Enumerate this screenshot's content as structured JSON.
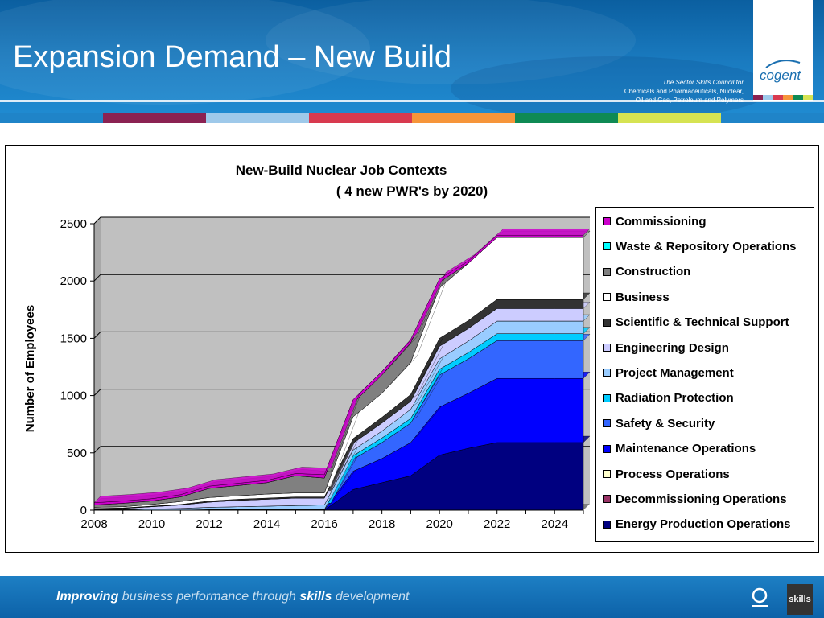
{
  "slide": {
    "title": "Expansion Demand – New Build",
    "tagline": [
      "The Sector Skills Council for",
      "Chemicals and Pharmaceuticals, Nuclear,",
      "Oil and Gas, Petroleum and Polymers"
    ],
    "logo_text": "cogent",
    "footer": {
      "w1": "Improving",
      "w2": " business performance through ",
      "w3": "skills",
      "w4": " development"
    },
    "skills_logo_text": "skills",
    "band_colors": [
      "#1f84c8",
      "#8b2252",
      "#9ec9ea",
      "#d83a4f",
      "#f6953a",
      "#0f8a54",
      "#d6e352",
      "#1f84c8"
    ],
    "logo_stripe_colors": [
      "#8b2252",
      "#9ec9ea",
      "#d83a4f",
      "#f6953a",
      "#0f8a54",
      "#d6e352"
    ]
  },
  "chart_data": {
    "type": "area",
    "stacked": true,
    "title": "New-Build Nuclear Job Contexts",
    "subtitle": "( 4 new PWR's by 2020)",
    "ylabel": "Number of Employees",
    "xlabel": "",
    "ylim": [
      0,
      2500
    ],
    "yticks": [
      0,
      500,
      1000,
      1500,
      2000,
      2500
    ],
    "xlim": [
      2008,
      2025
    ],
    "xticks": [
      2008,
      2010,
      2012,
      2014,
      2016,
      2018,
      2020,
      2022,
      2024
    ],
    "x": [
      2008,
      2009,
      2010,
      2011,
      2012,
      2013,
      2014,
      2015,
      2016,
      2017,
      2018,
      2019,
      2020,
      2021,
      2022,
      2023,
      2024,
      2025
    ],
    "grid": true,
    "legend_position": "right",
    "plot_background": "#c0c0c0",
    "series": [
      {
        "name": "Energy Production Operations",
        "color": "#000080",
        "values": [
          0,
          0,
          0,
          0,
          0,
          0,
          0,
          0,
          0,
          180,
          240,
          300,
          480,
          540,
          590,
          590,
          590,
          590
        ]
      },
      {
        "name": "Decommissioning Operations",
        "color": "#993366",
        "values": [
          0,
          0,
          0,
          0,
          0,
          0,
          0,
          0,
          0,
          0,
          0,
          0,
          0,
          0,
          0,
          0,
          0,
          0
        ]
      },
      {
        "name": "Process Operations",
        "color": "#ffffcc",
        "values": [
          0,
          0,
          0,
          0,
          0,
          0,
          0,
          0,
          0,
          0,
          0,
          0,
          0,
          0,
          0,
          0,
          0,
          0
        ]
      },
      {
        "name": "Maintenance Operations",
        "color": "#0000ff",
        "values": [
          0,
          0,
          0,
          0,
          0,
          0,
          0,
          0,
          0,
          160,
          210,
          290,
          420,
          480,
          560,
          560,
          560,
          560
        ]
      },
      {
        "name": "Safety & Security",
        "color": "#3366ff",
        "values": [
          0,
          0,
          0,
          0,
          5,
          5,
          5,
          5,
          5,
          105,
          140,
          170,
          280,
          300,
          330,
          330,
          330,
          330
        ]
      },
      {
        "name": "Radiation Protection",
        "color": "#00ccff",
        "values": [
          0,
          0,
          0,
          0,
          0,
          0,
          0,
          0,
          0,
          30,
          40,
          40,
          50,
          55,
          60,
          60,
          60,
          60
        ]
      },
      {
        "name": "Project Management",
        "color": "#99ccff",
        "values": [
          5,
          5,
          10,
          15,
          20,
          25,
          30,
          35,
          40,
          50,
          60,
          80,
          90,
          100,
          110,
          110,
          110,
          110
        ]
      },
      {
        "name": "Engineering Design",
        "color": "#ccccff",
        "values": [
          5,
          10,
          20,
          30,
          45,
          55,
          60,
          65,
          60,
          60,
          70,
          70,
          110,
          110,
          110,
          110,
          110,
          110
        ]
      },
      {
        "name": "Scientific & Technical Support",
        "color": "#333333",
        "values": [
          5,
          5,
          5,
          5,
          10,
          10,
          10,
          10,
          10,
          40,
          50,
          60,
          70,
          70,
          80,
          80,
          80,
          80
        ]
      },
      {
        "name": "Business",
        "color": "#ffffff",
        "values": [
          10,
          10,
          15,
          25,
          30,
          30,
          35,
          35,
          35,
          190,
          210,
          280,
          440,
          500,
          540,
          540,
          540,
          540
        ]
      },
      {
        "name": "Construction",
        "color": "#808080",
        "values": [
          20,
          30,
          30,
          40,
          80,
          90,
          100,
          150,
          130,
          120,
          160,
          170,
          50,
          0,
          0,
          0,
          0,
          0
        ]
      },
      {
        "name": "Waste & Repository Operations",
        "color": "#00ffff",
        "values": [
          0,
          0,
          0,
          0,
          0,
          0,
          0,
          0,
          0,
          0,
          0,
          0,
          0,
          0,
          0,
          0,
          0,
          0
        ]
      },
      {
        "name": "Commissioning",
        "color": "#cc00cc",
        "values": [
          20,
          20,
          20,
          20,
          20,
          20,
          20,
          20,
          30,
          30,
          30,
          30,
          30,
          20,
          20,
          20,
          20,
          20
        ]
      }
    ]
  }
}
